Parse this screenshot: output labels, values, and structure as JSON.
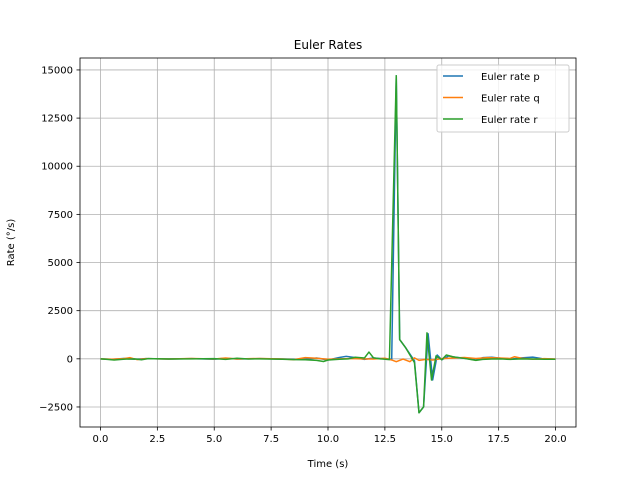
{
  "chart_data": {
    "type": "line",
    "title": "Euler Rates",
    "xlabel": "Time (s)",
    "ylabel": "Rate (°/s)",
    "xlim": [
      -0.9,
      20.9
    ],
    "ylim": [
      -3540,
      15620
    ],
    "x_ticks": [
      0.0,
      2.5,
      5.0,
      7.5,
      10.0,
      12.5,
      15.0,
      17.5,
      20.0
    ],
    "x_tick_labels": [
      "0.0",
      "2.5",
      "5.0",
      "7.5",
      "10.0",
      "12.5",
      "15.0",
      "17.5",
      "20.0"
    ],
    "y_ticks": [
      -2500,
      0,
      2500,
      5000,
      7500,
      10000,
      12500,
      15000
    ],
    "y_tick_labels": [
      "−2500",
      "0",
      "2500",
      "5000",
      "7500",
      "10000",
      "12500",
      "15000"
    ],
    "grid": true,
    "legend_position": "top-right",
    "series": [
      {
        "name": "Euler rate p",
        "color": "#1f77b4",
        "points": [
          [
            0.0,
            0
          ],
          [
            0.5,
            -30
          ],
          [
            1.0,
            20
          ],
          [
            1.5,
            -20
          ],
          [
            2.0,
            10
          ],
          [
            3.0,
            -10
          ],
          [
            4.0,
            10
          ],
          [
            5.0,
            -20
          ],
          [
            5.5,
            30
          ],
          [
            6.0,
            -10
          ],
          [
            7.0,
            10
          ],
          [
            8.0,
            -10
          ],
          [
            9.0,
            -30
          ],
          [
            9.5,
            40
          ],
          [
            10.0,
            -60
          ],
          [
            10.5,
            70
          ],
          [
            10.8,
            130
          ],
          [
            11.2,
            60
          ],
          [
            11.6,
            -30
          ],
          [
            12.0,
            40
          ],
          [
            12.4,
            10
          ],
          [
            12.8,
            -20
          ],
          [
            13.0,
            14700
          ],
          [
            13.15,
            1000
          ],
          [
            13.4,
            600
          ],
          [
            13.8,
            -100
          ],
          [
            14.0,
            -2800
          ],
          [
            14.2,
            -2500
          ],
          [
            14.4,
            1300
          ],
          [
            14.6,
            -1100
          ],
          [
            14.8,
            200
          ],
          [
            15.0,
            -50
          ],
          [
            15.3,
            150
          ],
          [
            15.6,
            80
          ],
          [
            16.0,
            30
          ],
          [
            16.5,
            -60
          ],
          [
            16.8,
            60
          ],
          [
            17.2,
            80
          ],
          [
            17.6,
            30
          ],
          [
            18.0,
            -20
          ],
          [
            18.5,
            50
          ],
          [
            19.0,
            90
          ],
          [
            19.4,
            10
          ],
          [
            20.0,
            -20
          ]
        ]
      },
      {
        "name": "Euler rate q",
        "color": "#ff7f0e",
        "points": [
          [
            0.0,
            0
          ],
          [
            0.5,
            -20
          ],
          [
            1.0,
            10
          ],
          [
            1.3,
            60
          ],
          [
            1.6,
            -40
          ],
          [
            2.0,
            10
          ],
          [
            3.0,
            -10
          ],
          [
            4.0,
            20
          ],
          [
            5.0,
            -10
          ],
          [
            5.5,
            40
          ],
          [
            6.0,
            -10
          ],
          [
            7.0,
            20
          ],
          [
            8.0,
            -10
          ],
          [
            8.5,
            -40
          ],
          [
            9.0,
            60
          ],
          [
            9.5,
            30
          ],
          [
            10.0,
            -20
          ],
          [
            11.0,
            20
          ],
          [
            11.5,
            0
          ],
          [
            12.0,
            -10
          ],
          [
            12.5,
            30
          ],
          [
            12.8,
            -60
          ],
          [
            13.0,
            -150
          ],
          [
            13.3,
            -10
          ],
          [
            13.6,
            -150
          ],
          [
            13.8,
            50
          ],
          [
            14.0,
            -80
          ],
          [
            14.3,
            -30
          ],
          [
            14.6,
            -60
          ],
          [
            15.0,
            10
          ],
          [
            15.5,
            40
          ],
          [
            16.0,
            70
          ],
          [
            16.5,
            20
          ],
          [
            17.0,
            60
          ],
          [
            17.5,
            40
          ],
          [
            18.0,
            20
          ],
          [
            18.2,
            110
          ],
          [
            18.5,
            30
          ],
          [
            19.0,
            -20
          ],
          [
            19.5,
            10
          ],
          [
            20.0,
            -10
          ]
        ]
      },
      {
        "name": "Euler rate r",
        "color": "#2ca02c",
        "points": [
          [
            0.0,
            0
          ],
          [
            0.3,
            -30
          ],
          [
            0.6,
            -60
          ],
          [
            1.0,
            -20
          ],
          [
            1.5,
            0
          ],
          [
            1.8,
            -50
          ],
          [
            2.1,
            10
          ],
          [
            3.0,
            -10
          ],
          [
            4.0,
            0
          ],
          [
            5.0,
            10
          ],
          [
            5.5,
            -30
          ],
          [
            6.0,
            30
          ],
          [
            6.5,
            -10
          ],
          [
            7.0,
            0
          ],
          [
            8.0,
            -20
          ],
          [
            8.5,
            -40
          ],
          [
            9.0,
            -50
          ],
          [
            9.5,
            -80
          ],
          [
            9.8,
            -140
          ],
          [
            10.0,
            -60
          ],
          [
            10.5,
            -20
          ],
          [
            10.9,
            0
          ],
          [
            11.2,
            80
          ],
          [
            11.6,
            40
          ],
          [
            11.8,
            350
          ],
          [
            12.0,
            50
          ],
          [
            12.3,
            0
          ],
          [
            12.7,
            -40
          ],
          [
            13.0,
            14700
          ],
          [
            13.15,
            1000
          ],
          [
            13.4,
            600
          ],
          [
            13.8,
            -200
          ],
          [
            14.0,
            -2800
          ],
          [
            14.2,
            -2500
          ],
          [
            14.35,
            1350
          ],
          [
            14.55,
            -1100
          ],
          [
            14.75,
            150
          ],
          [
            15.0,
            -50
          ],
          [
            15.2,
            200
          ],
          [
            15.5,
            100
          ],
          [
            16.0,
            20
          ],
          [
            16.5,
            -80
          ],
          [
            16.8,
            -30
          ],
          [
            17.2,
            -10
          ],
          [
            17.6,
            0
          ],
          [
            18.0,
            -30
          ],
          [
            18.5,
            0
          ],
          [
            19.0,
            -10
          ],
          [
            19.5,
            -20
          ],
          [
            20.0,
            -20
          ]
        ]
      }
    ]
  }
}
